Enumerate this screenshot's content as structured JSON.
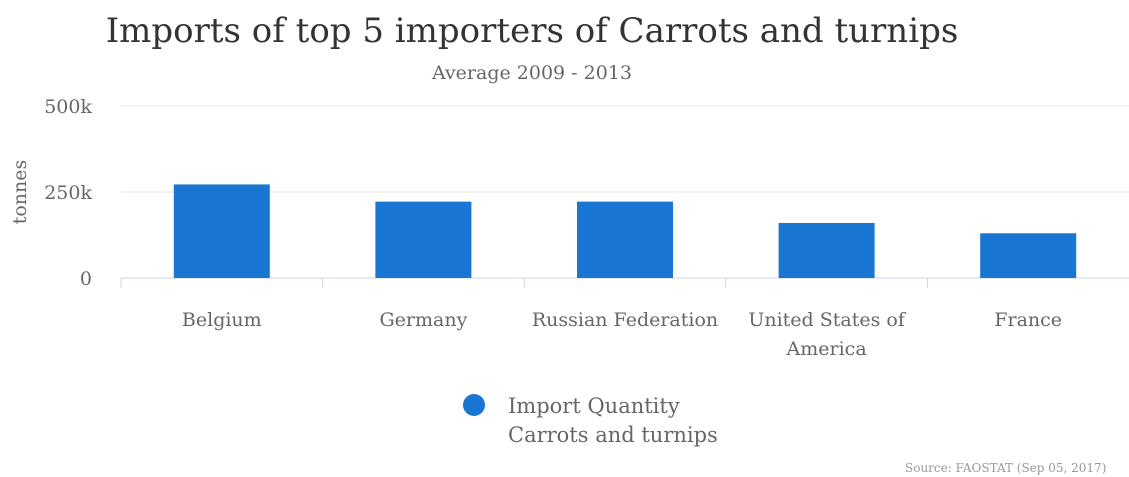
{
  "chart_data": {
    "type": "bar",
    "title": "Imports of top 5 importers of Carrots and turnips",
    "subtitle": "Average 2009 - 2013",
    "ylabel": "tonnes",
    "xlabel": "",
    "categories": [
      "Belgium",
      "Germany",
      "Russian Federation",
      "United States of America",
      "France"
    ],
    "category_lines": [
      [
        "Belgium"
      ],
      [
        "Germany"
      ],
      [
        "Russian Federation"
      ],
      [
        "United States of",
        "America"
      ],
      [
        "France"
      ]
    ],
    "series": [
      {
        "name": "Import Quantity Carrots and turnips",
        "name_lines": [
          "Import Quantity",
          "Carrots and turnips"
        ],
        "values": [
          272000,
          222000,
          222000,
          160000,
          130000
        ],
        "color": "#1976d2"
      }
    ],
    "ylim": [
      0,
      500000
    ],
    "yticks": [
      0,
      250000,
      500000
    ],
    "ytick_labels": [
      "0",
      "250k",
      "500k"
    ],
    "grid": true,
    "legend_position": "bottom-center",
    "credits": "Source: FAOSTAT (Sep 05, 2017)"
  }
}
